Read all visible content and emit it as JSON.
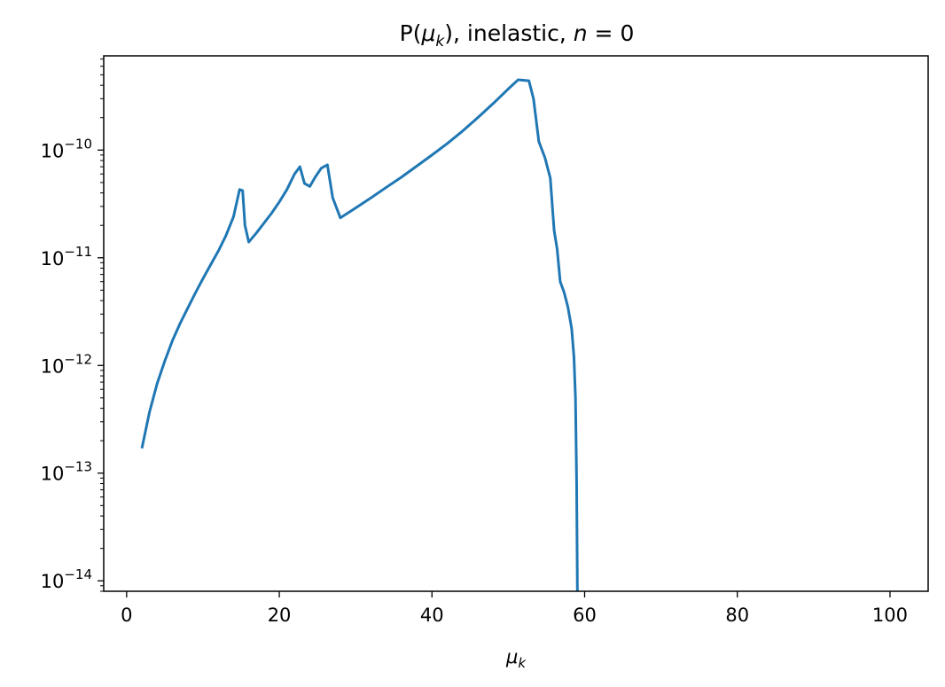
{
  "chart_data": {
    "type": "line",
    "title": {
      "prefix": "P(",
      "var": "μ",
      "sub": "k",
      "suffix": "), inelastic, ",
      "var2": "n",
      "eq": " = 0"
    },
    "xlabel": {
      "var": "μ",
      "sub": "k"
    },
    "ylabel": "",
    "xlim": [
      -3,
      105
    ],
    "ylim": [
      8e-15,
      7.5e-10
    ],
    "yscale": "log",
    "grid": false,
    "x_ticks": [
      0,
      20,
      40,
      60,
      80,
      100
    ],
    "y_ticks": [
      {
        "value": 1e-14,
        "label": "10",
        "exp": "−14"
      },
      {
        "value": 1e-13,
        "label": "10",
        "exp": "−13"
      },
      {
        "value": 1e-12,
        "label": "10",
        "exp": "−12"
      },
      {
        "value": 1e-11,
        "label": "10",
        "exp": "−11"
      },
      {
        "value": 1e-10,
        "label": "10",
        "exp": "−10"
      }
    ],
    "series": [
      {
        "color": "#1f77b4",
        "points": [
          [
            2.0,
            1.7e-13
          ],
          [
            3.0,
            3.7e-13
          ],
          [
            4.0,
            6.8e-13
          ],
          [
            5.0,
            1.1e-12
          ],
          [
            6.0,
            1.7e-12
          ],
          [
            7.0,
            2.45e-12
          ],
          [
            8.0,
            3.4e-12
          ],
          [
            9.0,
            4.7e-12
          ],
          [
            10.0,
            6.4e-12
          ],
          [
            11.0,
            8.6e-12
          ],
          [
            12.0,
            1.15e-11
          ],
          [
            13.0,
            1.6e-11
          ],
          [
            14.0,
            2.4e-11
          ],
          [
            14.8,
            4.3e-11
          ],
          [
            15.2,
            4.2e-11
          ],
          [
            15.5,
            2e-11
          ],
          [
            16.0,
            1.4e-11
          ],
          [
            17.0,
            1.7e-11
          ],
          [
            18.0,
            2.1e-11
          ],
          [
            19.0,
            2.6e-11
          ],
          [
            20.0,
            3.3e-11
          ],
          [
            21.0,
            4.3e-11
          ],
          [
            22.0,
            6e-11
          ],
          [
            22.7,
            7e-11
          ],
          [
            23.3,
            4.9e-11
          ],
          [
            24.0,
            4.6e-11
          ],
          [
            24.7,
            5.6e-11
          ],
          [
            25.5,
            6.8e-11
          ],
          [
            26.3,
            7.3e-11
          ],
          [
            27.0,
            3.6e-11
          ],
          [
            28.0,
            2.35e-11
          ],
          [
            30.0,
            2.9e-11
          ],
          [
            32.0,
            3.6e-11
          ],
          [
            34.0,
            4.5e-11
          ],
          [
            36.0,
            5.6e-11
          ],
          [
            38.0,
            7.1e-11
          ],
          [
            40.0,
            9e-11
          ],
          [
            42.0,
            1.15e-10
          ],
          [
            44.0,
            1.5e-10
          ],
          [
            46.0,
            2e-10
          ],
          [
            48.0,
            2.7e-10
          ],
          [
            50.0,
            3.7e-10
          ],
          [
            51.3,
            4.5e-10
          ],
          [
            52.7,
            4.4e-10
          ],
          [
            53.3,
            3e-10
          ],
          [
            54.0,
            1.2e-10
          ],
          [
            54.8,
            8.5e-11
          ],
          [
            55.5,
            5.5e-11
          ],
          [
            56.0,
            1.8e-11
          ],
          [
            56.4,
            1.2e-11
          ],
          [
            56.8,
            6e-12
          ],
          [
            57.3,
            4.8e-12
          ],
          [
            57.8,
            3.5e-12
          ],
          [
            58.3,
            2.2e-12
          ],
          [
            58.6,
            1.2e-12
          ],
          [
            58.8,
            5e-13
          ],
          [
            58.95,
            8e-14
          ],
          [
            59.05,
            8e-15
          ]
        ]
      }
    ]
  }
}
